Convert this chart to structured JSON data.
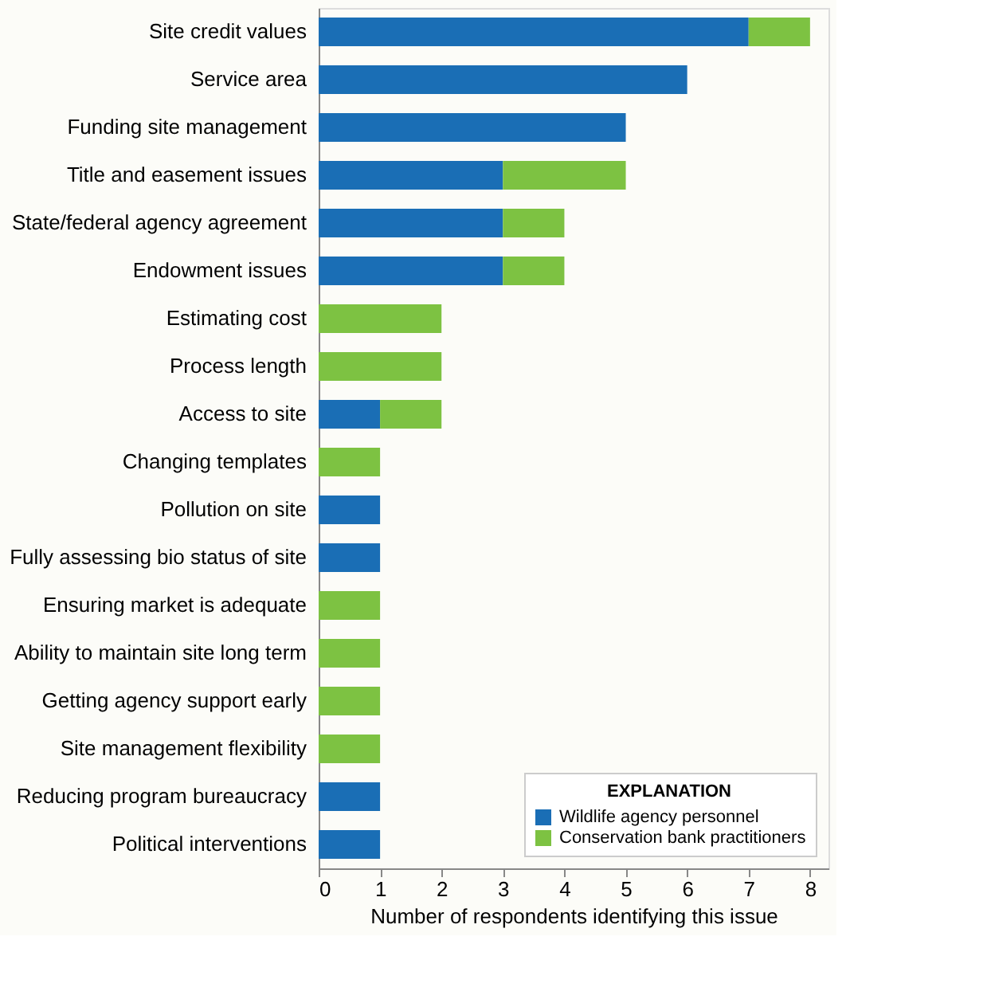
{
  "chart_data": {
    "type": "bar",
    "orientation": "horizontal",
    "stacked": true,
    "categories": [
      "Site credit values",
      "Service area",
      "Funding site management",
      "Title and easement issues",
      "State/federal agency agreement",
      "Endowment issues",
      "Estimating cost",
      "Process length",
      "Access to site",
      "Changing templates",
      "Pollution on site",
      "Fully assessing bio status of site",
      "Ensuring market is adequate",
      "Ability to maintain site long term",
      "Getting agency support early",
      "Site management flexibility",
      "Reducing program bureaucracy",
      "Political interventions"
    ],
    "series": [
      {
        "name": "Wildlife agency personnel",
        "color": "#1a6eb5",
        "values": [
          7,
          6,
          5,
          3,
          3,
          3,
          null,
          null,
          1,
          null,
          1,
          1,
          null,
          null,
          null,
          null,
          1,
          1
        ]
      },
      {
        "name": "Conservation bank practitioners",
        "color": "#7dc242",
        "values": [
          1,
          null,
          null,
          2,
          1,
          1,
          2,
          2,
          1,
          1,
          null,
          null,
          1,
          1,
          1,
          1,
          null,
          null
        ]
      }
    ],
    "xlabel": "Number of respondents identifying this issue",
    "legend_title": "EXPLANATION",
    "xlim": [
      0,
      8.3
    ],
    "xticks": [
      0,
      1,
      2,
      3,
      4,
      5,
      6,
      7,
      8
    ],
    "grid": false,
    "legend": "bottom right"
  }
}
